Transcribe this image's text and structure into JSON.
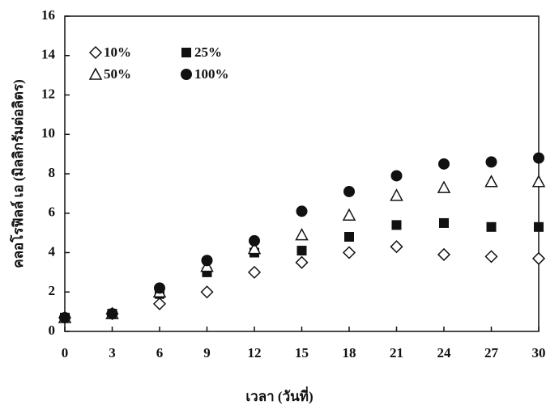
{
  "chart_data": {
    "type": "scatter",
    "x_label": "เวลา (วันที่)",
    "y_label": "คลอโรฟิลล์ เอ (มิลลิกรัมต่อลิตร)",
    "x": [
      0,
      3,
      6,
      9,
      12,
      15,
      18,
      21,
      24,
      27,
      30
    ],
    "series": [
      {
        "name": "10%",
        "color": "#111111",
        "marker": "diamond-open",
        "values": [
          0.7,
          0.9,
          1.4,
          2.0,
          3.0,
          3.5,
          4.0,
          4.3,
          3.9,
          3.8,
          3.7
        ]
      },
      {
        "name": "25%",
        "color": "#111111",
        "marker": "square",
        "values": [
          0.7,
          0.9,
          1.9,
          3.0,
          4.0,
          4.1,
          4.8,
          5.4,
          5.5,
          5.3,
          5.3
        ]
      },
      {
        "name": "50%",
        "color": "#111111",
        "marker": "triangle-open",
        "values": [
          0.7,
          0.9,
          2.0,
          3.3,
          4.2,
          4.9,
          5.9,
          6.9,
          7.3,
          7.6,
          7.6
        ]
      },
      {
        "name": "100%",
        "color": "#111111",
        "marker": "circle",
        "values": [
          0.7,
          0.9,
          2.2,
          3.6,
          4.6,
          6.1,
          7.1,
          7.9,
          8.5,
          8.6,
          8.8
        ]
      }
    ],
    "xlim": [
      0,
      30
    ],
    "xticks": [
      0,
      3,
      6,
      9,
      12,
      15,
      18,
      21,
      24,
      27,
      30
    ],
    "ylim": [
      0,
      16
    ],
    "yticks": [
      0,
      2,
      4,
      6,
      8,
      10,
      12,
      14,
      16
    ],
    "grid": false,
    "legend": "upper left"
  }
}
